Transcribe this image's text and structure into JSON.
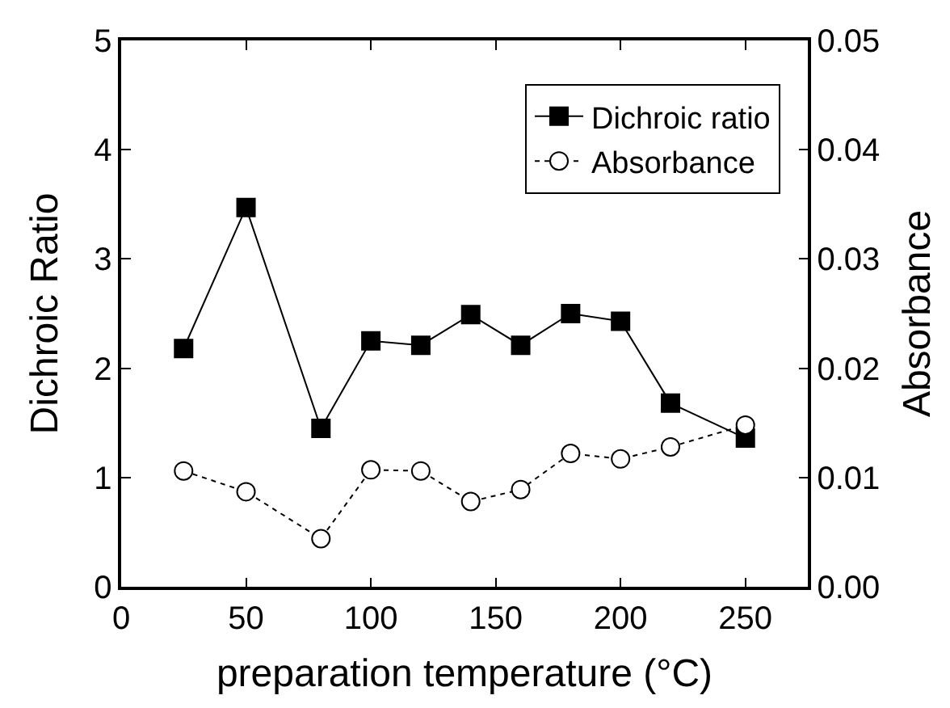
{
  "chart_data": {
    "type": "line",
    "xlabel": "preparation temperature (°C)",
    "ylabel": "Dichroic Ratio",
    "y2label": "Absorbance",
    "x": [
      25,
      50,
      80,
      100,
      120,
      140,
      160,
      180,
      200,
      220,
      250
    ],
    "series": [
      {
        "name": "Dichroic ratio",
        "color": "#000000",
        "values": [
          2.18,
          3.47,
          1.45,
          2.25,
          2.21,
          2.49,
          2.21,
          2.5,
          2.43,
          1.68,
          1.36
        ],
        "marker": "square",
        "line_style": "solid"
      },
      {
        "name": "Absorbance",
        "color": "#000000",
        "values": [
          0.0106,
          0.0087,
          0.0044,
          0.0107,
          0.0106,
          0.0078,
          0.0089,
          0.0122,
          0.0117,
          0.0128,
          0.0148
        ],
        "marker": "circle",
        "line_style": "dotted",
        "axis": "y2"
      }
    ],
    "xlim": [
      0,
      275
    ],
    "xticks": [
      0,
      50,
      100,
      150,
      200,
      250
    ],
    "ylim": [
      0,
      5
    ],
    "yticks": [
      0,
      1,
      2,
      3,
      4,
      5
    ],
    "y2lim": [
      0,
      0.05
    ],
    "y2ticks": [
      {
        "value": 0,
        "label": "0.00"
      },
      {
        "value": 0.01,
        "label": "0.01"
      },
      {
        "value": 0.02,
        "label": "0.02"
      },
      {
        "value": 0.03,
        "label": "0.03"
      },
      {
        "value": 0.04,
        "label": "0.04"
      },
      {
        "value": 0.05,
        "label": "0.05"
      }
    ],
    "legend": "top right"
  }
}
